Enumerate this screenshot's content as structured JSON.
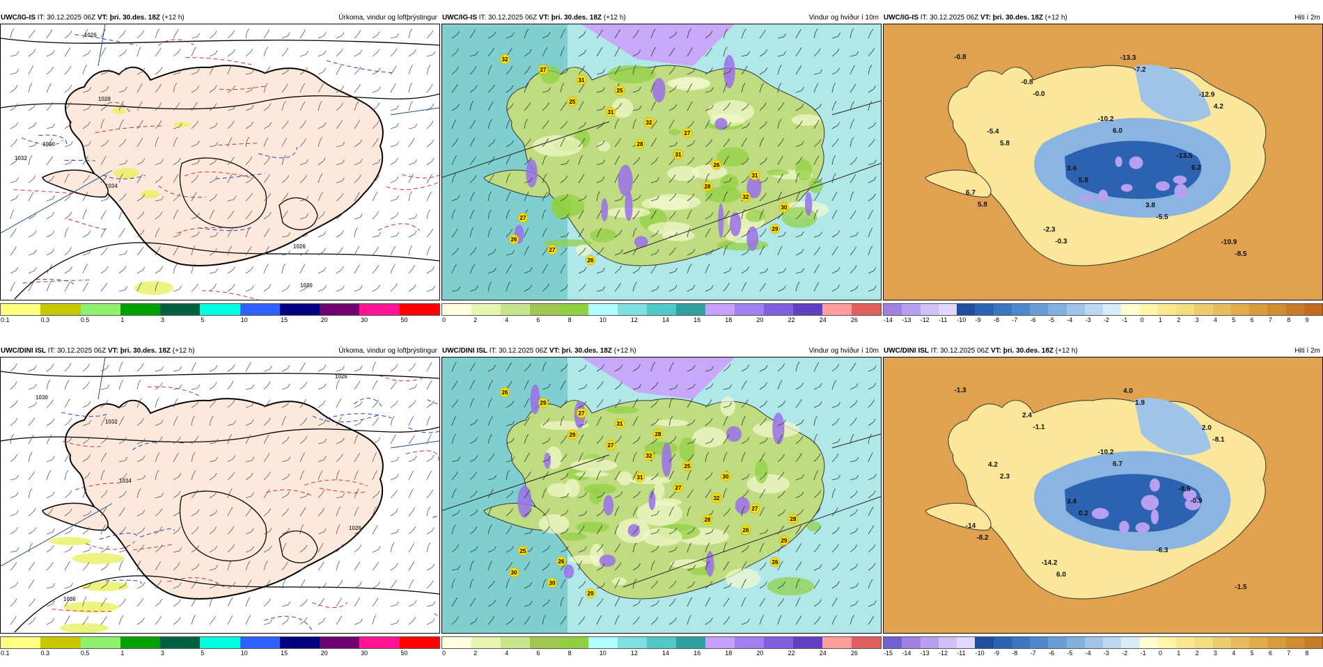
{
  "rows": [
    {
      "model": "UWC/IG-IS",
      "it_label": "IT:",
      "it": "30.12.2025 06Z",
      "vt_label": "VT:",
      "vt": "þri. 30.des. 18Z",
      "lead": "(+12 h)"
    },
    {
      "model": "UWC/DINI ISL",
      "it_label": "IT:",
      "it": "30.12.2025 06Z",
      "vt_label": "VT:",
      "vt": "þri. 30.des. 18Z",
      "lead": "(+12 h)"
    }
  ],
  "precip": {
    "title": "Úrkoma, vindur og loftþrýstingur",
    "colors": [
      "#ffff80",
      "#c8c800",
      "#90f070",
      "#00a000",
      "#006040",
      "#00ffe0",
      "#3060ff",
      "#000080",
      "#700070",
      "#ff1493",
      "#ff0000"
    ],
    "ticks": [
      "0.1",
      "0.3",
      "0.5",
      "1",
      "3",
      "5",
      "10",
      "15",
      "20",
      "30",
      "50"
    ],
    "isobars_top": [
      "1026",
      "1028",
      "1030",
      "1032",
      "1034",
      "1026",
      "1030"
    ],
    "isobars_bottom": [
      "1026",
      "1030",
      "1032",
      "1034",
      "1026",
      "1036"
    ]
  },
  "wind": {
    "title": "Vindur og hviður í 10m",
    "colors": [
      "#ffffe0",
      "#e6f5b0",
      "#c8e68c",
      "#a0c850",
      "#90d040",
      "#b0ffff",
      "#80e0e0",
      "#50c8c8",
      "#30a0a0",
      "#c8a0ff",
      "#a080f0",
      "#8060e0",
      "#6040c0",
      "#ff9c9c",
      "#e06060"
    ],
    "ticks": [
      "0",
      "2",
      "4",
      "6",
      "8",
      "10",
      "12",
      "14",
      "16",
      "18",
      "20",
      "22",
      "24",
      "26"
    ],
    "gusts_top": [
      "32",
      "25",
      "28",
      "28",
      "29",
      "27",
      "31",
      "31",
      "32",
      "26",
      "31",
      "32",
      "26",
      "30",
      "27",
      "25",
      "27",
      "31",
      "27",
      "26"
    ],
    "gusts_bottom": [
      "26",
      "29",
      "31",
      "28",
      "26",
      "29",
      "27",
      "27",
      "26",
      "30",
      "27",
      "32",
      "32",
      "29",
      "30",
      "31",
      "25",
      "27",
      "25",
      "29",
      "28",
      "30",
      "28",
      "26"
    ]
  },
  "temp": {
    "title": "Hiti í 2m",
    "colors_top": [
      "#a080e0",
      "#b8a0f0",
      "#d0c0f8",
      "#e0d8ff",
      "#1e4e9c",
      "#2d62b0",
      "#3c76c0",
      "#5088cc",
      "#6a9cd6",
      "#84b0de",
      "#a0c4e8",
      "#bcd8f0",
      "#d8ecf8",
      "#fffcd0",
      "#fff4a8",
      "#fae890",
      "#f4dc80",
      "#eccc6c",
      "#e6bc5c",
      "#e0ac4c",
      "#d89c3c",
      "#d08c30",
      "#c87c28",
      "#c06c20"
    ],
    "ticks_top": [
      "-14",
      "-13",
      "-12",
      "-11",
      "-10",
      "-9",
      "-8",
      "-7",
      "-6",
      "-5",
      "-4",
      "-3",
      "-2",
      "-1",
      "0",
      "1",
      "2",
      "3",
      "4",
      "5",
      "6",
      "7",
      "8",
      "9"
    ],
    "colors_bottom": [
      "#7060d0",
      "#a080e0",
      "#b8a0f0",
      "#d0c0f8",
      "#e0d8ff",
      "#1e4e9c",
      "#2d62b0",
      "#3c76c0",
      "#5088cc",
      "#6a9cd6",
      "#84b0de",
      "#a0c4e8",
      "#bcd8f0",
      "#d8ecf8",
      "#fffcd0",
      "#fff4a8",
      "#fae890",
      "#f4dc80",
      "#eccc6c",
      "#e6bc5c",
      "#e0ac4c",
      "#d89c3c",
      "#d08c30",
      "#c87c28"
    ],
    "ticks_bottom": [
      "-15",
      "-14",
      "-13",
      "-12",
      "-11",
      "-10",
      "-9",
      "-8",
      "-7",
      "-6",
      "-5",
      "-4",
      "-3",
      "-2",
      "-1",
      "0",
      "1",
      "2",
      "3",
      "4",
      "5",
      "6",
      "7",
      "8"
    ],
    "labels_top": [
      "-0.8",
      "-0.0",
      "6.0",
      "6.2",
      "5.8",
      "-0.3",
      "-7.2",
      "4.2",
      "5.8",
      "5.8",
      "-5.5",
      "-8.5",
      "-0.8",
      "-10.2",
      "-13.5",
      "6.7",
      "-2.3",
      "-13.3",
      "-12.9",
      "-5.4",
      "3.4",
      "3.8",
      "-10.9"
    ],
    "labels_bottom": [
      "-1.3",
      "-1.1",
      "6.7",
      "-0.9",
      "-8.2",
      "6.0",
      "1.9",
      "-8.1",
      "2.3",
      "0.2",
      "-6.3",
      "-1.5",
      "2.4",
      "-10.2",
      "-8.5",
      "-14",
      "-14.2",
      "4.0",
      "2.0",
      "4.2",
      "3.4"
    ]
  }
}
